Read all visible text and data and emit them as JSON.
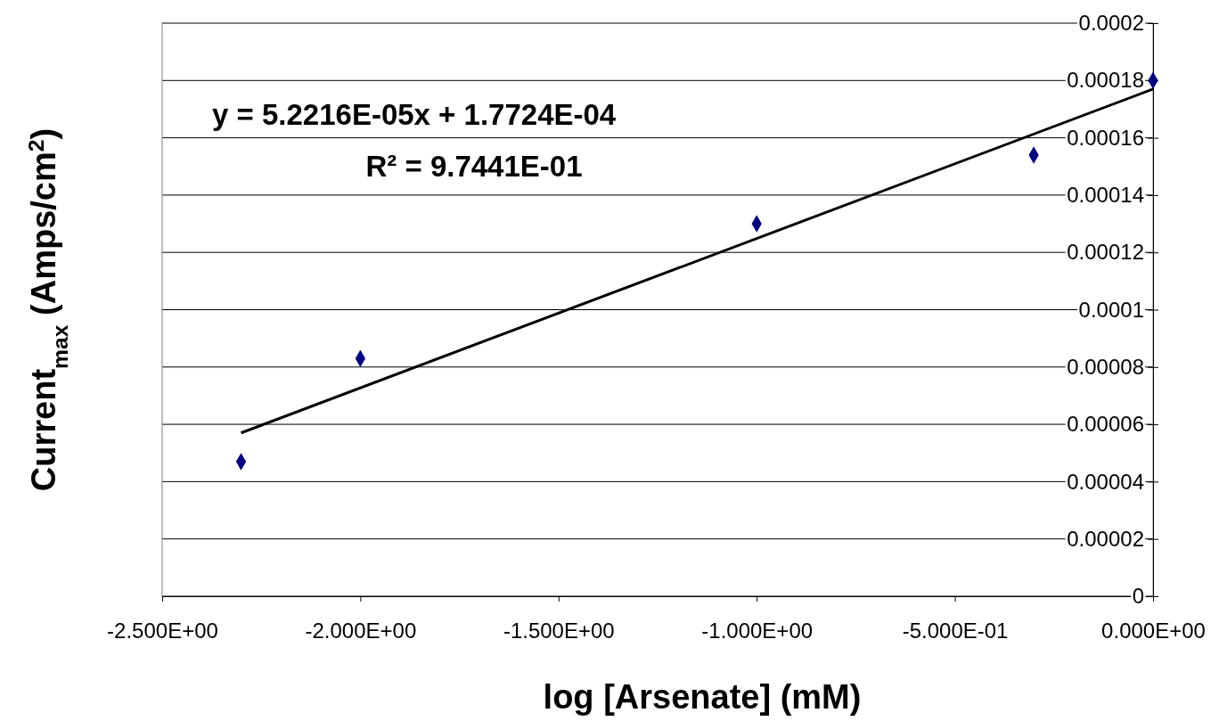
{
  "chart_data": {
    "type": "scatter",
    "xlabel": "log [Arsenate] (mM)",
    "ylabel": "Current$_{max}$ (Amps/cm$^{2}$)",
    "xlim": [
      -2.5,
      0
    ],
    "xticks": [
      {
        "value": -2.5,
        "label": "-2.500E+00"
      },
      {
        "value": -2,
        "label": "-2.000E+00"
      },
      {
        "value": -1.5,
        "label": "-1.500E+00"
      },
      {
        "value": -1,
        "label": "-1.000E+00"
      },
      {
        "value": -0.5,
        "label": "-5.000E-01"
      },
      {
        "value": 0,
        "label": "0.000E+00"
      }
    ],
    "ylim": [
      0,
      0.0002
    ],
    "yticks": [
      0,
      {
        "value": 2e-05,
        "label": "0.00002"
      },
      {
        "value": 4e-05,
        "label": "0.00004"
      },
      {
        "value": 6e-05,
        "label": "0.00006"
      },
      {
        "value": 8e-05,
        "label": "0.00008"
      },
      0.0001,
      0.00012,
      0.00014,
      0.00016,
      0.00018,
      0.0002
    ],
    "grid": "y",
    "marker": "diamond",
    "series": [
      {
        "color": "#000080",
        "x": [
          -2.301,
          -2,
          -1,
          -0.301,
          0
        ],
        "values": [
          4.7e-05,
          8.3e-05,
          0.00013,
          0.000154,
          0.00018
        ]
      },
      {
        "type": "line",
        "color": "#000000",
        "x": [
          -2.301,
          0
        ],
        "values": [
          5.7e-05,
          0.000177
        ],
        "marker": "none"
      }
    ],
    "annotations": [
      "y = 5.2216E-05x + 1.7724E-04",
      "R² = 9.7441E-01"
    ]
  }
}
